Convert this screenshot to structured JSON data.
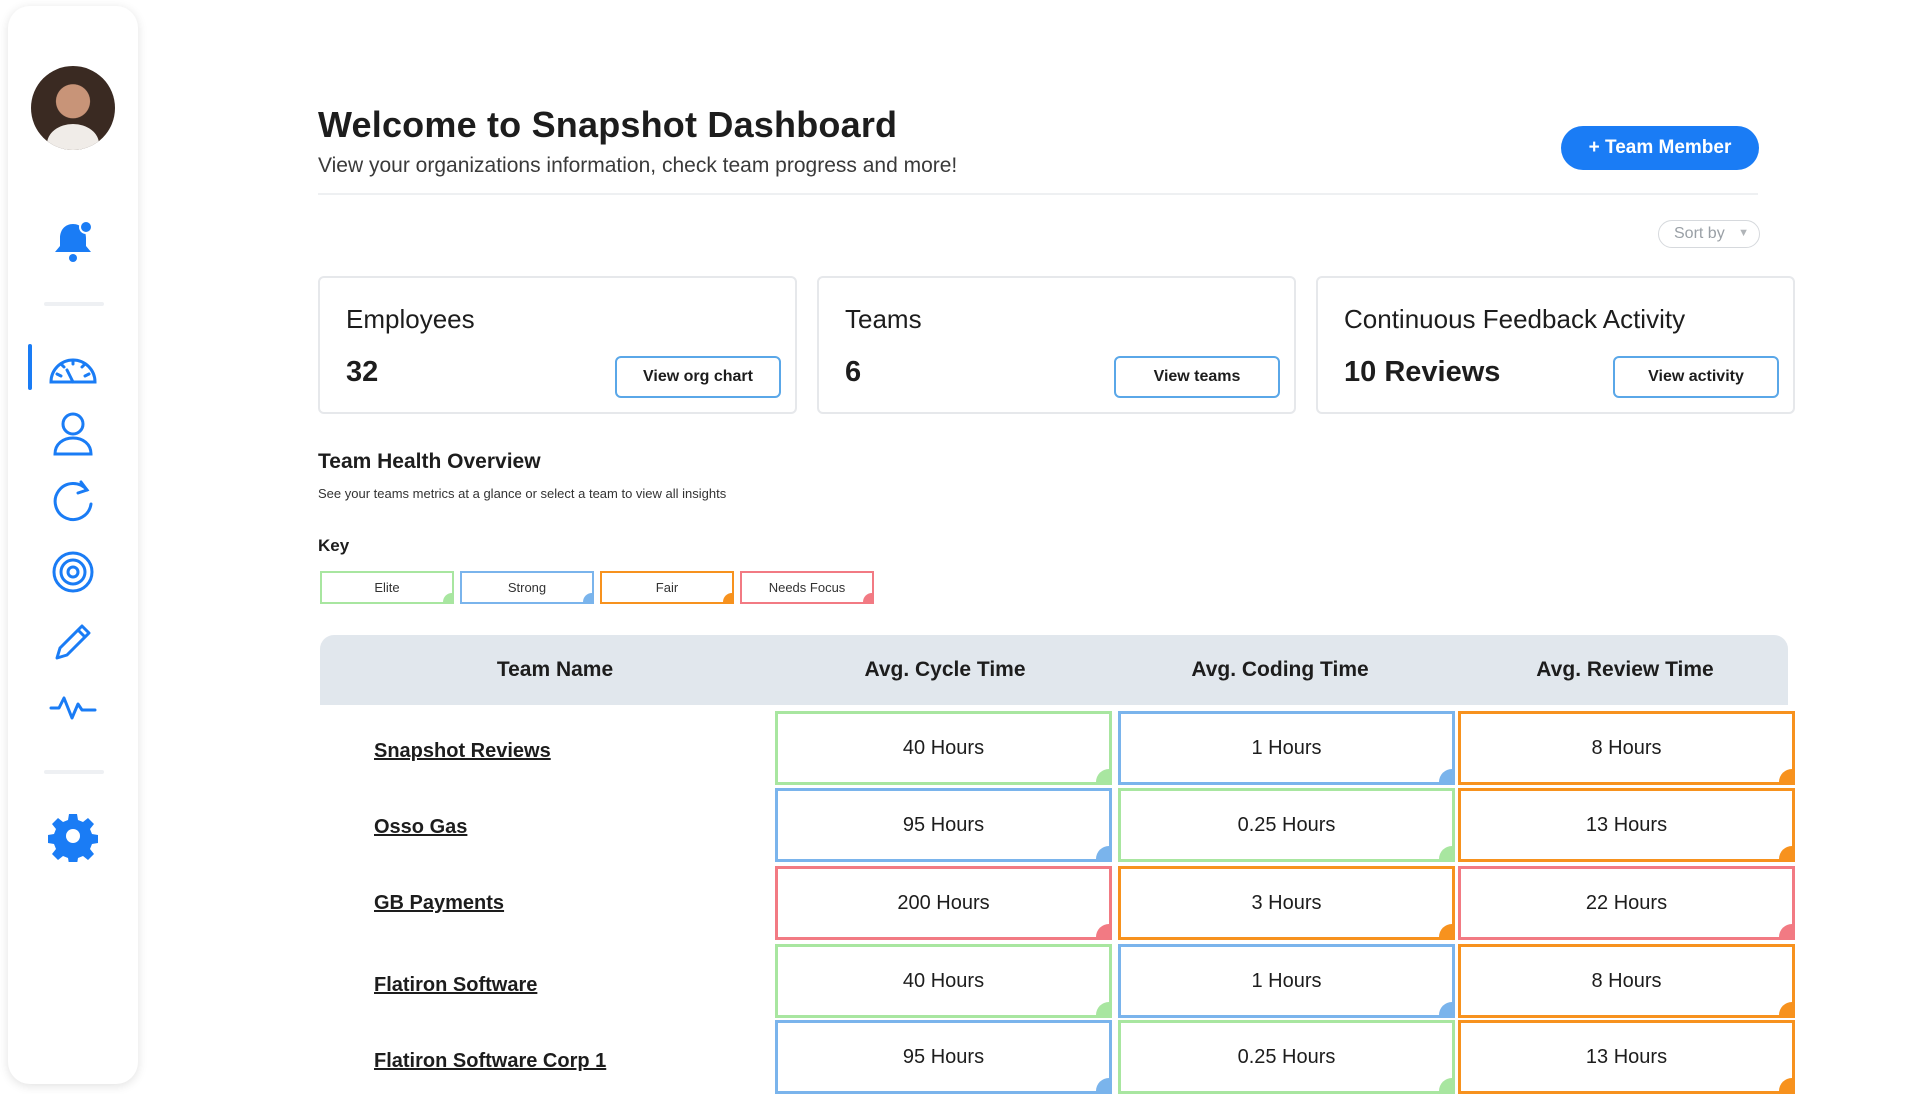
{
  "colors": {
    "accent": "#1a7cf5",
    "elite": "#a8e6a0",
    "strong": "#7ab4ec",
    "fair": "#f7921e",
    "needs_focus": "#f27a83"
  },
  "sidebar": {
    "icons": [
      "notification-bell-icon",
      "dashboard-gauge-icon",
      "user-icon",
      "refresh-icon",
      "target-icon",
      "pencil-icon",
      "activity-pulse-icon",
      "gear-icon"
    ]
  },
  "header": {
    "title": "Welcome to Snapshot Dashboard",
    "subtitle": "View your organizations information, check team progress and more!",
    "team_member_button": "+ Team Member",
    "sort_placeholder": "Sort by"
  },
  "cards": [
    {
      "label": "Employees",
      "value": "32",
      "button": "View org chart"
    },
    {
      "label": "Teams",
      "value": "6",
      "button": "View teams"
    },
    {
      "label": "Continuous Feedback Activity",
      "value": "10 Reviews",
      "button": "View activity"
    }
  ],
  "health": {
    "title": "Team Health Overview",
    "subtitle": "See your teams metrics at a glance or select a team to view all insights",
    "key_label": "Key",
    "key": [
      {
        "label": "Elite",
        "level": "elite"
      },
      {
        "label": "Strong",
        "level": "strong"
      },
      {
        "label": "Fair",
        "level": "fair"
      },
      {
        "label": "Needs Focus",
        "level": "needs_focus"
      }
    ]
  },
  "table": {
    "headers": [
      "Team Name",
      "Avg. Cycle Time",
      "Avg. Coding Time",
      "Avg. Review Time"
    ],
    "rows": [
      {
        "name": "Snapshot Reviews",
        "cells": [
          {
            "value": "40 Hours",
            "level": "elite"
          },
          {
            "value": "1 Hours",
            "level": "strong"
          },
          {
            "value": "8 Hours",
            "level": "fair"
          }
        ]
      },
      {
        "name": "Osso Gas",
        "cells": [
          {
            "value": "95 Hours",
            "level": "strong"
          },
          {
            "value": "0.25 Hours",
            "level": "elite"
          },
          {
            "value": "13 Hours",
            "level": "fair"
          }
        ]
      },
      {
        "name": "GB Payments",
        "cells": [
          {
            "value": "200 Hours",
            "level": "needs_focus"
          },
          {
            "value": "3 Hours",
            "level": "fair"
          },
          {
            "value": "22 Hours",
            "level": "needs_focus"
          }
        ]
      },
      {
        "name": "Flatiron Software",
        "cells": [
          {
            "value": "40 Hours",
            "level": "elite"
          },
          {
            "value": "1 Hours",
            "level": "strong"
          },
          {
            "value": "8 Hours",
            "level": "fair"
          }
        ]
      },
      {
        "name": "Flatiron Software Corp 1",
        "cells": [
          {
            "value": "95 Hours",
            "level": "strong"
          },
          {
            "value": "0.25 Hours",
            "level": "elite"
          },
          {
            "value": "13 Hours",
            "level": "fair"
          }
        ]
      }
    ]
  }
}
